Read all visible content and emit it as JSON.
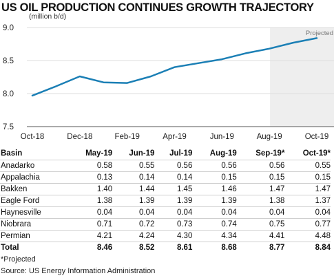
{
  "title": "US OIL PRODUCTION CONTINUES GROWTH TRAJECTORY",
  "chart_data": {
    "type": "line",
    "unit_label": "(million b/d)",
    "x": [
      "Oct-18",
      "Nov-18",
      "Dec-18",
      "Jan-19",
      "Feb-19",
      "Mar-19",
      "Apr-19",
      "May-19",
      "Jun-19",
      "Jul-19",
      "Aug-19",
      "Sep-19",
      "Oct-19"
    ],
    "x_tick_labels": [
      "Oct-18",
      "Dec-18",
      "Feb-19",
      "Apr-19",
      "Jun-19",
      "Aug-19",
      "Oct-19"
    ],
    "y_tick_labels": [
      "9.0",
      "8.5",
      "8.0",
      "7.5"
    ],
    "ylim": [
      7.5,
      9.0
    ],
    "series": [
      {
        "values": [
          7.97,
          8.11,
          8.26,
          8.17,
          8.16,
          8.26,
          8.4,
          8.46,
          8.52,
          8.61,
          8.68,
          8.77,
          8.84
        ]
      }
    ],
    "projected_label": "Projected",
    "color": "#1b7fb5",
    "projected_shade": "#eeeeee"
  },
  "table": {
    "headers": [
      "Basin",
      "May-19",
      "Jun-19",
      "Jul-19",
      "Aug-19",
      "Sep-19*",
      "Oct-19*"
    ],
    "rows": [
      [
        "Anadarko",
        "0.58",
        "0.55",
        "0.56",
        "0.56",
        "0.56",
        "0.55"
      ],
      [
        "Appalachia",
        "0.13",
        "0.14",
        "0.14",
        "0.15",
        "0.15",
        "0.15"
      ],
      [
        "Bakken",
        "1.40",
        "1.44",
        "1.45",
        "1.46",
        "1.47",
        "1.47"
      ],
      [
        "Eagle Ford",
        "1.38",
        "1.39",
        "1.39",
        "1.39",
        "1.38",
        "1.37"
      ],
      [
        "Haynesville",
        "0.04",
        "0.04",
        "0.04",
        "0.04",
        "0.04",
        "0.04"
      ],
      [
        "Niobrara",
        "0.71",
        "0.72",
        "0.73",
        "0.74",
        "0.75",
        "0.77"
      ],
      [
        "Permian",
        "4.21",
        "4.24",
        "4.30",
        "4.34",
        "4.41",
        "4.48"
      ]
    ],
    "total": [
      "Total",
      "8.46",
      "8.52",
      "8.61",
      "8.68",
      "8.77",
      "8.84"
    ]
  },
  "footnote": "*Projected",
  "source": "Source: US Energy Information Administration"
}
